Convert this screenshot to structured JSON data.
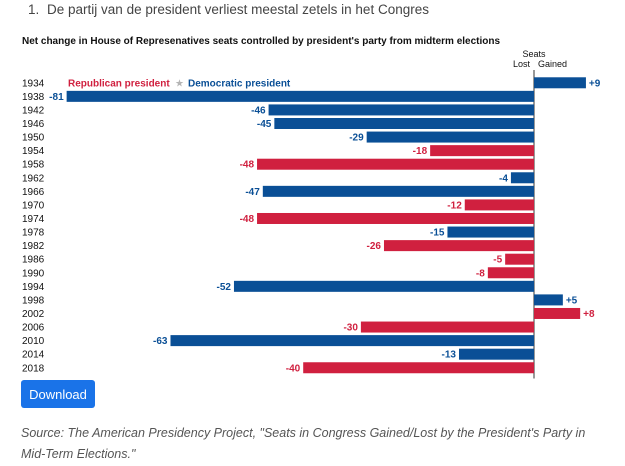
{
  "heading": {
    "number": "1.",
    "text": "De partij van de president verliest meestal zetels in het Congres"
  },
  "download_label": "Download",
  "source_text": "Source: The American Presidency Project, \"Seats in Congress Gained/Lost by the President's Party in Mid-Term Elections.\"",
  "colors": {
    "republican": "#d0203f",
    "democratic": "#0a4f96",
    "legend_star": "#b5b5b5",
    "axis": "#333333"
  },
  "chart_data": {
    "type": "bar",
    "orientation": "horizontal",
    "title": "Net change in House of Represenatives seats controlled by president's party from midterm elections",
    "axis_header": {
      "top": "Seats",
      "lost": "Lost",
      "gained": "Gained"
    },
    "legend": {
      "republican": "Republican president",
      "separator": "★",
      "democratic": "Democratic president"
    },
    "xlim": [
      -81,
      9
    ],
    "categories": [
      "1934",
      "1938",
      "1942",
      "1946",
      "1950",
      "1954",
      "1958",
      "1962",
      "1966",
      "1970",
      "1974",
      "1978",
      "1982",
      "1986",
      "1990",
      "1994",
      "1998",
      "2002",
      "2006",
      "2010",
      "2014",
      "2018"
    ],
    "values": [
      9,
      -81,
      -46,
      -45,
      -29,
      -18,
      -48,
      -4,
      -47,
      -12,
      -48,
      -15,
      -26,
      -5,
      -8,
      -52,
      5,
      8,
      -30,
      -63,
      -13,
      -40
    ],
    "labels": [
      "+9",
      "-81",
      "-46",
      "-45",
      "-29",
      "-18",
      "-48",
      "-4",
      "-47",
      "-12",
      "-48",
      "-15",
      "-26",
      "-5",
      "-8",
      "-52",
      "+5",
      "+8",
      "-30",
      "-63",
      "-13",
      "-40"
    ],
    "party": [
      "D",
      "D",
      "D",
      "D",
      "D",
      "R",
      "R",
      "D",
      "D",
      "R",
      "R",
      "D",
      "R",
      "R",
      "R",
      "D",
      "D",
      "R",
      "R",
      "D",
      "D",
      "R"
    ]
  }
}
